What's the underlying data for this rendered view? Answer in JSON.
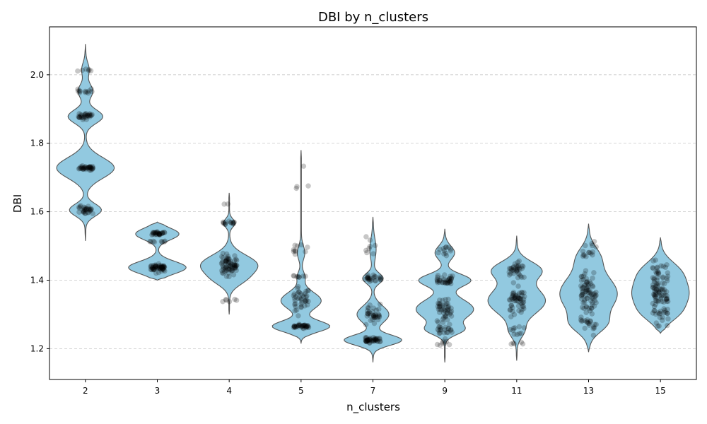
{
  "chart_data": {
    "type": "violin",
    "title": "DBI by n_clusters",
    "xlabel": "n_clusters",
    "ylabel": "DBI",
    "categories": [
      "2",
      "3",
      "4",
      "5",
      "7",
      "9",
      "11",
      "13",
      "15"
    ],
    "ylim": [
      1.11,
      2.14
    ],
    "yticks": [
      1.2,
      1.4,
      1.6,
      1.8,
      2.0
    ],
    "ytick_labels": [
      "1.2",
      "1.4",
      "1.6",
      "1.8",
      "2.0"
    ],
    "grid": "y-dashed",
    "colors": {
      "violin_fill": "#92c9e0",
      "violin_edge": "#555555",
      "points": "#000000"
    },
    "distributions": [
      {
        "category": "2",
        "min": 1.515,
        "max": 2.09,
        "modes": [
          [
            1.605,
            0.018,
            0.55
          ],
          [
            1.728,
            0.03,
            1.0
          ],
          [
            1.878,
            0.02,
            0.6
          ],
          [
            1.952,
            0.02,
            0.25
          ],
          [
            2.015,
            0.02,
            0.12
          ]
        ],
        "clusters": [
          [
            1.605,
            0.01,
            30
          ],
          [
            1.728,
            0.004,
            36
          ],
          [
            1.878,
            0.008,
            30
          ],
          [
            1.952,
            0.004,
            12
          ],
          [
            2.015,
            0.003,
            6
          ]
        ]
      },
      {
        "category": "3",
        "min": 1.4,
        "max": 1.57,
        "modes": [
          [
            1.437,
            0.018,
            1.0
          ],
          [
            1.535,
            0.017,
            0.75
          ]
        ],
        "clusters": [
          [
            1.437,
            0.008,
            55
          ],
          [
            1.537,
            0.004,
            30
          ],
          [
            1.512,
            0.002,
            8
          ]
        ]
      },
      {
        "category": "4",
        "min": 1.3,
        "max": 1.655,
        "modes": [
          [
            1.445,
            0.028,
            1.0
          ],
          [
            1.567,
            0.012,
            0.2
          ],
          [
            1.4,
            0.02,
            0.35
          ]
        ],
        "clusters": [
          [
            1.445,
            0.022,
            70
          ],
          [
            1.568,
            0.004,
            14
          ],
          [
            1.34,
            0.004,
            6
          ],
          [
            1.623,
            0.002,
            2
          ]
        ]
      },
      {
        "category": "5",
        "min": 1.215,
        "max": 1.78,
        "modes": [
          [
            1.265,
            0.016,
            1.0
          ],
          [
            1.34,
            0.025,
            0.7
          ],
          [
            1.48,
            0.02,
            0.12
          ],
          [
            1.41,
            0.015,
            0.12
          ]
        ],
        "clusters": [
          [
            1.265,
            0.004,
            35
          ],
          [
            1.335,
            0.03,
            40
          ],
          [
            1.41,
            0.003,
            8
          ],
          [
            1.485,
            0.012,
            10
          ],
          [
            1.67,
            0.004,
            3
          ],
          [
            1.733,
            0.001,
            1
          ]
        ]
      },
      {
        "category": "7",
        "min": 1.16,
        "max": 1.585,
        "modes": [
          [
            1.225,
            0.015,
            1.0
          ],
          [
            1.3,
            0.025,
            0.55
          ],
          [
            1.405,
            0.015,
            0.35
          ],
          [
            1.49,
            0.03,
            0.1
          ]
        ],
        "clusters": [
          [
            1.225,
            0.006,
            45
          ],
          [
            1.3,
            0.02,
            35
          ],
          [
            1.405,
            0.006,
            25
          ],
          [
            1.49,
            0.03,
            8
          ]
        ]
      },
      {
        "category": "9",
        "min": 1.16,
        "max": 1.55,
        "modes": [
          [
            1.315,
            0.03,
            0.9
          ],
          [
            1.4,
            0.018,
            0.8
          ],
          [
            1.255,
            0.015,
            0.5
          ],
          [
            1.48,
            0.02,
            0.3
          ]
        ],
        "clusters": [
          [
            1.315,
            0.025,
            45
          ],
          [
            1.4,
            0.008,
            35
          ],
          [
            1.255,
            0.008,
            20
          ],
          [
            1.22,
            0.008,
            8
          ],
          [
            1.49,
            0.012,
            12
          ]
        ]
      },
      {
        "category": "11",
        "min": 1.165,
        "max": 1.53,
        "modes": [
          [
            1.34,
            0.04,
            1.0
          ],
          [
            1.43,
            0.025,
            0.8
          ],
          [
            1.25,
            0.02,
            0.2
          ]
        ],
        "clusters": [
          [
            1.34,
            0.035,
            55
          ],
          [
            1.43,
            0.02,
            35
          ],
          [
            1.255,
            0.015,
            10
          ],
          [
            1.215,
            0.005,
            5
          ]
        ]
      },
      {
        "category": "13",
        "min": 1.19,
        "max": 1.565,
        "modes": [
          [
            1.36,
            0.055,
            1.0
          ],
          [
            1.27,
            0.025,
            0.4
          ],
          [
            1.47,
            0.03,
            0.3
          ]
        ],
        "clusters": [
          [
            1.36,
            0.05,
            80
          ],
          [
            1.265,
            0.015,
            15
          ],
          [
            1.48,
            0.025,
            15
          ]
        ]
      },
      {
        "category": "15",
        "min": 1.245,
        "max": 1.525,
        "modes": [
          [
            1.36,
            0.045,
            1.0
          ],
          [
            1.43,
            0.03,
            0.45
          ],
          [
            1.3,
            0.025,
            0.3
          ]
        ],
        "clusters": [
          [
            1.36,
            0.045,
            80
          ],
          [
            1.44,
            0.02,
            15
          ],
          [
            1.3,
            0.02,
            12
          ]
        ]
      }
    ]
  }
}
